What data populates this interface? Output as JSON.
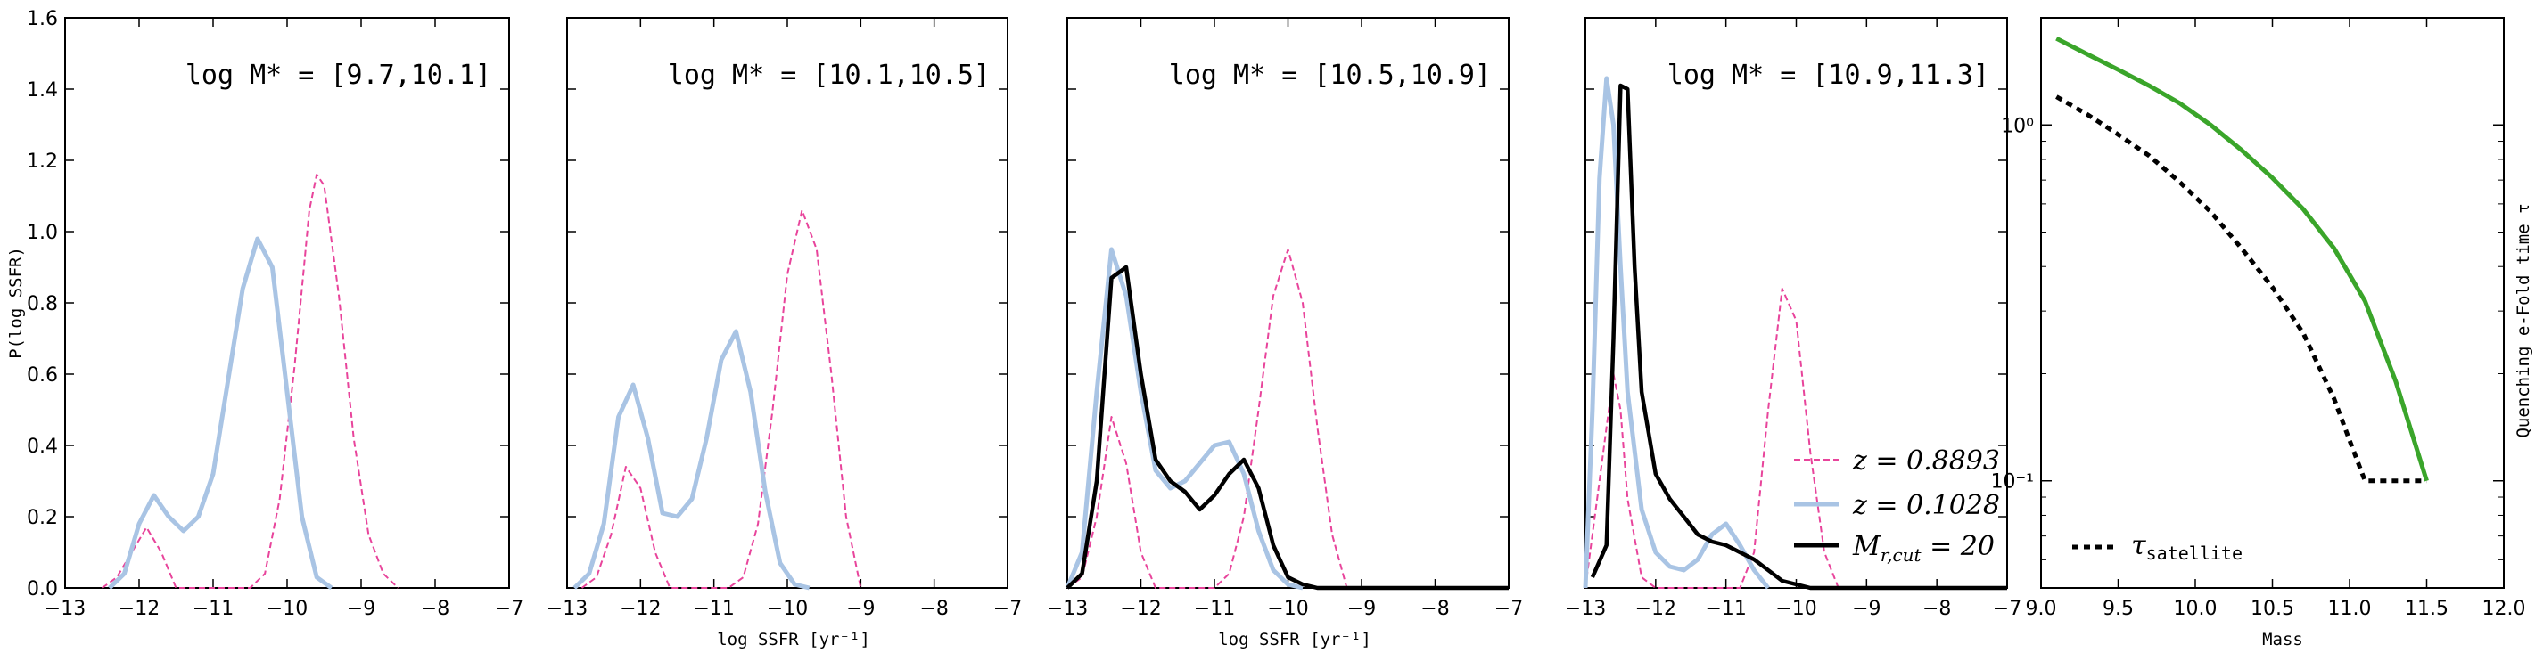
{
  "colors": {
    "pink": "#e8449b",
    "blue": "#a9c4e4",
    "black": "#000000",
    "green": "#3aa52a"
  },
  "shared": {
    "xticks": [
      "−13",
      "−12",
      "−11",
      "−10",
      "−9",
      "−8",
      "−7"
    ],
    "yticks": [
      "0.0",
      "0.2",
      "0.4",
      "0.6",
      "0.8",
      "1.0",
      "1.2",
      "1.4",
      "1.6"
    ],
    "ylabel": "P(log SSFR)",
    "xlabel": "log SSFR [yr⁻¹]"
  },
  "legend": {
    "pink_label": "z = 0.8893",
    "blue_label": "z = 0.1028",
    "black_label": "M",
    "black_sub": "r,cut",
    "black_tail": " = 20"
  },
  "chart_data": [
    {
      "type": "line",
      "title": "log M* = [9.7,10.1]",
      "xlim": [
        -13,
        -7
      ],
      "ylim": [
        0,
        1.6
      ],
      "series": [
        {
          "name": "z = 0.8893",
          "color": "pink",
          "style": "dashed",
          "x": [
            -12.5,
            -12.3,
            -12.1,
            -11.9,
            -11.7,
            -11.5,
            -10.5,
            -10.3,
            -10.1,
            -9.9,
            -9.7,
            -9.6,
            -9.5,
            -9.3,
            -9.1,
            -8.9,
            -8.7,
            -8.5
          ],
          "y": [
            0,
            0.03,
            0.1,
            0.17,
            0.1,
            0,
            0,
            0.04,
            0.25,
            0.62,
            1.06,
            1.16,
            1.13,
            0.82,
            0.42,
            0.15,
            0.04,
            0
          ]
        },
        {
          "name": "z = 0.1028",
          "color": "blue",
          "style": "solid",
          "x": [
            -12.4,
            -12.2,
            -12.0,
            -11.8,
            -11.6,
            -11.4,
            -11.2,
            -11.0,
            -10.8,
            -10.6,
            -10.4,
            -10.2,
            -10.0,
            -9.8,
            -9.6,
            -9.4
          ],
          "y": [
            0,
            0.04,
            0.18,
            0.26,
            0.2,
            0.16,
            0.2,
            0.32,
            0.58,
            0.84,
            0.98,
            0.9,
            0.55,
            0.2,
            0.03,
            0
          ]
        }
      ]
    },
    {
      "type": "line",
      "title": "log M* = [10.1,10.5]",
      "xlim": [
        -13,
        -7
      ],
      "ylim": [
        0,
        1.6
      ],
      "series": [
        {
          "name": "z = 0.8893",
          "color": "pink",
          "style": "dashed",
          "x": [
            -12.8,
            -12.6,
            -12.4,
            -12.2,
            -12.0,
            -11.8,
            -11.6,
            -10.8,
            -10.6,
            -10.4,
            -10.2,
            -10.0,
            -9.8,
            -9.6,
            -9.4,
            -9.2,
            -9.0
          ],
          "y": [
            0,
            0.03,
            0.15,
            0.34,
            0.28,
            0.1,
            0,
            0,
            0.03,
            0.18,
            0.5,
            0.88,
            1.06,
            0.95,
            0.6,
            0.2,
            0
          ]
        },
        {
          "name": "z = 0.1028",
          "color": "blue",
          "style": "solid",
          "x": [
            -12.9,
            -12.7,
            -12.5,
            -12.3,
            -12.1,
            -11.9,
            -11.7,
            -11.5,
            -11.3,
            -11.1,
            -10.9,
            -10.7,
            -10.5,
            -10.3,
            -10.1,
            -9.9,
            -9.7
          ],
          "y": [
            0,
            0.04,
            0.18,
            0.48,
            0.57,
            0.42,
            0.21,
            0.2,
            0.25,
            0.42,
            0.64,
            0.72,
            0.55,
            0.27,
            0.07,
            0.01,
            0
          ]
        }
      ]
    },
    {
      "type": "line",
      "title": "log M* = [10.5,10.9]",
      "xlim": [
        -13,
        -7
      ],
      "ylim": [
        0,
        1.6
      ],
      "series": [
        {
          "name": "z = 0.8893",
          "color": "pink",
          "style": "dashed",
          "x": [
            -13.0,
            -12.8,
            -12.6,
            -12.4,
            -12.2,
            -12.0,
            -11.8,
            -11.0,
            -10.8,
            -10.6,
            -10.4,
            -10.2,
            -10.0,
            -9.8,
            -9.6,
            -9.4,
            -9.2
          ],
          "y": [
            0,
            0.03,
            0.2,
            0.48,
            0.35,
            0.1,
            0,
            0,
            0.04,
            0.2,
            0.5,
            0.82,
            0.95,
            0.8,
            0.45,
            0.15,
            0
          ]
        },
        {
          "name": "z = 0.1028",
          "color": "blue",
          "style": "solid",
          "x": [
            -13.0,
            -12.8,
            -12.6,
            -12.4,
            -12.2,
            -12.0,
            -11.8,
            -11.6,
            -11.4,
            -11.2,
            -11.0,
            -10.8,
            -10.6,
            -10.4,
            -10.2,
            -10.0,
            -9.8
          ],
          "y": [
            0,
            0.1,
            0.55,
            0.95,
            0.82,
            0.55,
            0.33,
            0.28,
            0.3,
            0.35,
            0.4,
            0.41,
            0.32,
            0.16,
            0.05,
            0.01,
            0
          ]
        },
        {
          "name": "Mr,cut = 20",
          "color": "black",
          "style": "solid",
          "x": [
            -13.0,
            -12.8,
            -12.6,
            -12.4,
            -12.2,
            -12.0,
            -11.8,
            -11.6,
            -11.4,
            -11.2,
            -11.0,
            -10.8,
            -10.6,
            -10.4,
            -10.2,
            -10.0,
            -9.8,
            -9.6,
            -9.0,
            -8.0,
            -7.0
          ],
          "y": [
            0,
            0.04,
            0.3,
            0.87,
            0.9,
            0.6,
            0.36,
            0.3,
            0.27,
            0.22,
            0.26,
            0.32,
            0.36,
            0.28,
            0.12,
            0.03,
            0.01,
            0,
            0,
            0,
            0
          ]
        }
      ]
    },
    {
      "type": "line",
      "title": "log M* = [10.9,11.3]",
      "xlim": [
        -13,
        -7
      ],
      "ylim": [
        0,
        1.6
      ],
      "series": [
        {
          "name": "z = 0.8893",
          "color": "pink",
          "style": "dashed",
          "x": [
            -13.0,
            -12.8,
            -12.6,
            -12.5,
            -12.4,
            -12.2,
            -12.0,
            -10.8,
            -10.6,
            -10.4,
            -10.2,
            -10.0,
            -9.8,
            -9.6,
            -9.4
          ],
          "y": [
            0,
            0.3,
            0.6,
            0.5,
            0.25,
            0.03,
            0,
            0,
            0.1,
            0.5,
            0.84,
            0.75,
            0.38,
            0.1,
            0
          ]
        },
        {
          "name": "z = 0.1028",
          "color": "blue",
          "style": "solid",
          "x": [
            -13.0,
            -12.9,
            -12.8,
            -12.7,
            -12.6,
            -12.5,
            -12.4,
            -12.2,
            -12.0,
            -11.8,
            -11.6,
            -11.4,
            -11.2,
            -11.0,
            -10.8,
            -10.6,
            -10.4
          ],
          "y": [
            0,
            0.5,
            1.15,
            1.43,
            1.3,
            0.9,
            0.55,
            0.22,
            0.1,
            0.06,
            0.05,
            0.08,
            0.15,
            0.18,
            0.12,
            0.05,
            0
          ]
        },
        {
          "name": "Mr,cut = 20",
          "color": "black",
          "style": "solid",
          "x": [
            -12.9,
            -12.7,
            -12.6,
            -12.5,
            -12.4,
            -12.3,
            -12.2,
            -12.0,
            -11.8,
            -11.6,
            -11.4,
            -11.2,
            -11.0,
            -10.8,
            -10.6,
            -10.4,
            -10.2,
            -10.0,
            -9.8,
            -9.0,
            -8.0,
            -7.0
          ],
          "y": [
            0.03,
            0.12,
            0.7,
            1.41,
            1.4,
            0.9,
            0.55,
            0.32,
            0.25,
            0.2,
            0.15,
            0.13,
            0.12,
            0.1,
            0.08,
            0.05,
            0.02,
            0.01,
            0,
            0,
            0,
            0
          ]
        }
      ]
    },
    {
      "type": "line",
      "xlabel": "Mass",
      "ylabel": "Quenching e-Fold time τ",
      "xlim": [
        9.0,
        12.0
      ],
      "ylim": [
        0.05,
        2.0
      ],
      "yscale": "log",
      "xticks": [
        "9.0",
        "9.5",
        "10.0",
        "10.5",
        "11.0",
        "11.5",
        "12.0"
      ],
      "yticks": [
        "10⁰",
        "10⁻¹"
      ],
      "legend_label": "τ",
      "legend_sub": "satellite",
      "series": [
        {
          "name": "τsatellite",
          "color": "black",
          "style": "dotted",
          "x": [
            9.1,
            9.3,
            9.5,
            9.7,
            9.9,
            10.1,
            10.3,
            10.5,
            10.7,
            10.9,
            11.0,
            11.1,
            11.3,
            11.5
          ],
          "y": [
            1.2,
            1.07,
            0.94,
            0.82,
            0.69,
            0.57,
            0.45,
            0.35,
            0.26,
            0.17,
            0.13,
            0.1,
            0.1,
            0.1
          ]
        },
        {
          "color": "green",
          "style": "solid",
          "x": [
            9.1,
            9.3,
            9.5,
            9.7,
            9.9,
            10.1,
            10.3,
            10.5,
            10.7,
            10.9,
            11.1,
            11.3,
            11.5
          ],
          "y": [
            1.75,
            1.58,
            1.43,
            1.29,
            1.15,
            1.0,
            0.85,
            0.71,
            0.58,
            0.45,
            0.32,
            0.19,
            0.1
          ]
        }
      ]
    }
  ]
}
